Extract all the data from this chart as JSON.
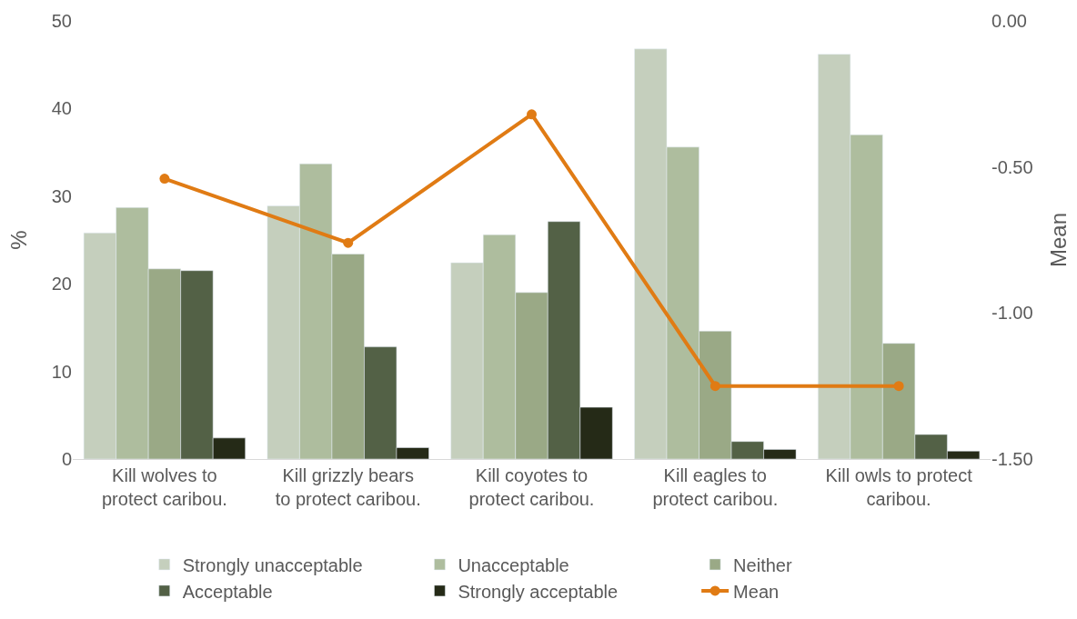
{
  "chart_data": {
    "type": "bar",
    "ylabel": "%",
    "y2label": "Mean",
    "categories": [
      "Kill wolves to protect caribou.",
      "Kill grizzly bears to protect caribou.",
      "Kill coyotes to protect caribou.",
      "Kill eagles to protect caribou.",
      "Kill owls to protect caribou."
    ],
    "series": [
      {
        "name": "Strongly unacceptable",
        "color": "#c5cfbd",
        "values": [
          25.8,
          28.9,
          22.4,
          46.8,
          46.2
        ]
      },
      {
        "name": "Unacceptable",
        "color": "#aebd9e",
        "values": [
          28.7,
          33.7,
          25.6,
          35.6,
          37.0
        ]
      },
      {
        "name": "Neither",
        "color": "#9aa986",
        "values": [
          21.7,
          23.4,
          19.0,
          14.6,
          13.2
        ]
      },
      {
        "name": "Acceptable",
        "color": "#536146",
        "values": [
          21.5,
          12.8,
          27.1,
          2.0,
          2.8
        ]
      },
      {
        "name": "Strongly acceptable",
        "color": "#252a17",
        "values": [
          2.4,
          1.3,
          5.9,
          1.1,
          0.9
        ]
      },
      {
        "name": "Mean",
        "color": "#e07b14",
        "type": "line",
        "axis": "y2",
        "marker": "circle",
        "values": [
          -0.54,
          -0.76,
          -0.32,
          -1.25,
          -1.25
        ]
      }
    ],
    "ylim": [
      0,
      50
    ],
    "yticks": [
      0,
      10,
      20,
      30,
      40,
      50
    ],
    "y2lim": [
      -1.5,
      0
    ],
    "y2ticks": [
      {
        "value": -1.5,
        "label": "-1.50"
      },
      {
        "value": -1.0,
        "label": "-1.00"
      },
      {
        "value": -0.5,
        "label": "-0.50"
      },
      {
        "value": 0,
        "label": "0.00"
      }
    ],
    "legend": "bottom"
  }
}
